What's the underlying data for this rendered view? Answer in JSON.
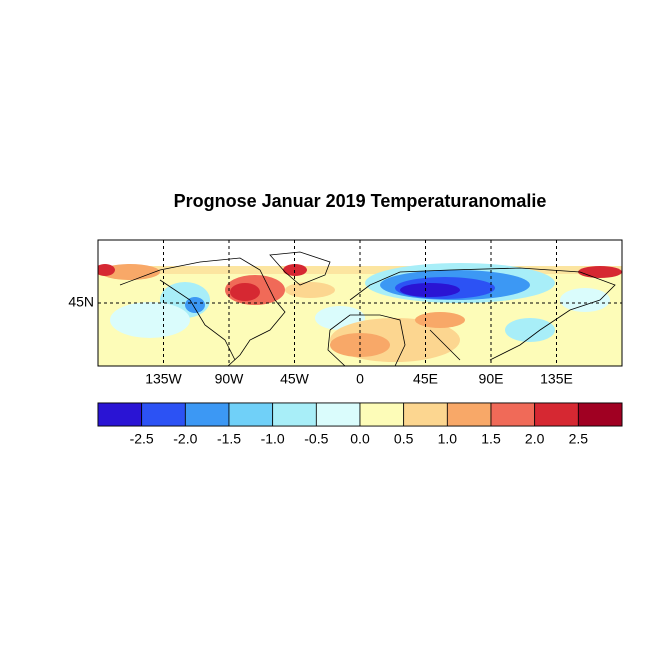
{
  "title": "Prognose Januar 2019 Temperaturanomalie",
  "map": {
    "xlim": [
      -180,
      180
    ],
    "ylim": [
      0,
      90
    ],
    "xticks": [
      {
        "value": -135,
        "label": "135W"
      },
      {
        "value": -90,
        "label": "90W"
      },
      {
        "value": -45,
        "label": "45W"
      },
      0,
      {
        "value": 45,
        "label": "45E"
      },
      {
        "value": 90,
        "label": "90E"
      },
      {
        "value": 135,
        "label": "135E"
      }
    ],
    "yticks": [
      {
        "value": 45,
        "label": "45N"
      }
    ],
    "grid": true
  },
  "colorbar": {
    "lim": [
      -3,
      3
    ],
    "colors": [
      "#2a14d4",
      "#2c52f4",
      "#3c98f4",
      "#70d0f8",
      "#a8eef8",
      "#dafcfc",
      "#fdfcb8",
      "#fcd690",
      "#f8a868",
      "#f06a58",
      "#d62832",
      "#a00022"
    ],
    "ticks": [
      -2.5,
      {
        "value": -2,
        "label": "-2.0"
      },
      -1.5,
      {
        "value": -1,
        "label": "-1.0"
      },
      -0.5,
      {
        "value": 0,
        "label": "0.0"
      },
      0.5,
      {
        "value": 1,
        "label": "1.0"
      },
      1.5,
      {
        "value": 2,
        "label": "2.0"
      },
      2.5
    ]
  }
}
